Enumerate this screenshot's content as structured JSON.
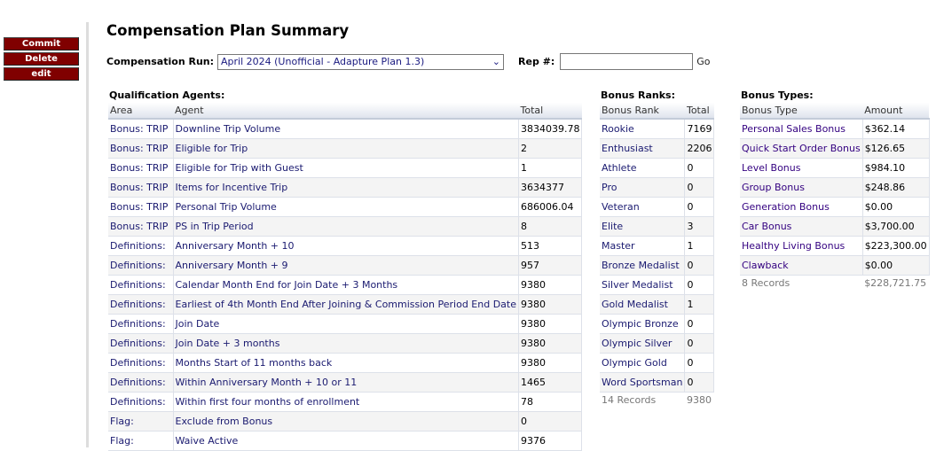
{
  "sidebar": {
    "commit": "Commit",
    "delete": "Delete",
    "edit": "edit"
  },
  "page_title": "Compensation Plan Summary",
  "run": {
    "label": "Compensation Run:",
    "selected": "April 2024 (Unofficial - Adapture Plan 1.3)",
    "rep_label": "Rep #:",
    "rep_value": "",
    "go": "Go"
  },
  "qual": {
    "title": "Qualification Agents:",
    "headers": [
      "Area",
      "Agent",
      "Total"
    ],
    "rows": [
      [
        "Bonus: TRIP",
        "Downline Trip Volume",
        "3834039.78"
      ],
      [
        "Bonus: TRIP",
        "Eligible for Trip",
        "2"
      ],
      [
        "Bonus: TRIP",
        "Eligible for Trip with Guest",
        "1"
      ],
      [
        "Bonus: TRIP",
        "Items for Incentive Trip",
        "3634377"
      ],
      [
        "Bonus: TRIP",
        "Personal Trip Volume",
        "686006.04"
      ],
      [
        "Bonus: TRIP",
        "PS in Trip Period",
        "8"
      ],
      [
        "Definitions:",
        "Anniversary Month + 10",
        "513"
      ],
      [
        "Definitions:",
        "Anniversary Month + 9",
        "957"
      ],
      [
        "Definitions:",
        "Calendar Month End for Join Date + 3 Months",
        "9380"
      ],
      [
        "Definitions:",
        "Earliest of 4th Month End After Joining & Commission Period End Date",
        "9380"
      ],
      [
        "Definitions:",
        "Join Date",
        "9380"
      ],
      [
        "Definitions:",
        "Join Date + 3 months",
        "9380"
      ],
      [
        "Definitions:",
        "Months Start of 11 months back",
        "9380"
      ],
      [
        "Definitions:",
        "Within Anniversary Month + 10 or 11",
        "1465"
      ],
      [
        "Definitions:",
        "Within first four months of enrollment",
        "78"
      ],
      [
        "Flag:",
        "Exclude from Bonus",
        "0"
      ],
      [
        "Flag:",
        "Waive Active",
        "9376"
      ]
    ]
  },
  "ranks": {
    "title": "Bonus Ranks:",
    "headers": [
      "Bonus Rank",
      "Total"
    ],
    "rows": [
      [
        "Rookie",
        "7169"
      ],
      [
        "Enthusiast",
        "2206"
      ],
      [
        "Athlete",
        "0"
      ],
      [
        "Pro",
        "0"
      ],
      [
        "Veteran",
        "0"
      ],
      [
        "Elite",
        "3"
      ],
      [
        "Master",
        "1"
      ],
      [
        "Bronze Medalist",
        "0"
      ],
      [
        "Silver Medalist",
        "0"
      ],
      [
        "Gold Medalist",
        "1"
      ],
      [
        "Olympic Bronze",
        "0"
      ],
      [
        "Olympic Silver",
        "0"
      ],
      [
        "Olympic Gold",
        "0"
      ],
      [
        "Word Sportsman",
        "0"
      ]
    ],
    "footer": [
      "14 Records",
      "9380"
    ]
  },
  "types": {
    "title": "Bonus Types:",
    "headers": [
      "Bonus Type",
      "Amount"
    ],
    "rows": [
      [
        "Personal Sales Bonus",
        "$362.14"
      ],
      [
        "Quick Start Order Bonus",
        "$126.65"
      ],
      [
        "Level Bonus",
        "$984.10"
      ],
      [
        "Group Bonus",
        "$248.86"
      ],
      [
        "Generation Bonus",
        "$0.00"
      ],
      [
        "Car Bonus",
        "$3,700.00"
      ],
      [
        "Healthy Living Bonus",
        "$223,300.00"
      ],
      [
        "Clawback",
        "$0.00"
      ]
    ],
    "footer": [
      "8 Records",
      "$228,721.75"
    ]
  }
}
